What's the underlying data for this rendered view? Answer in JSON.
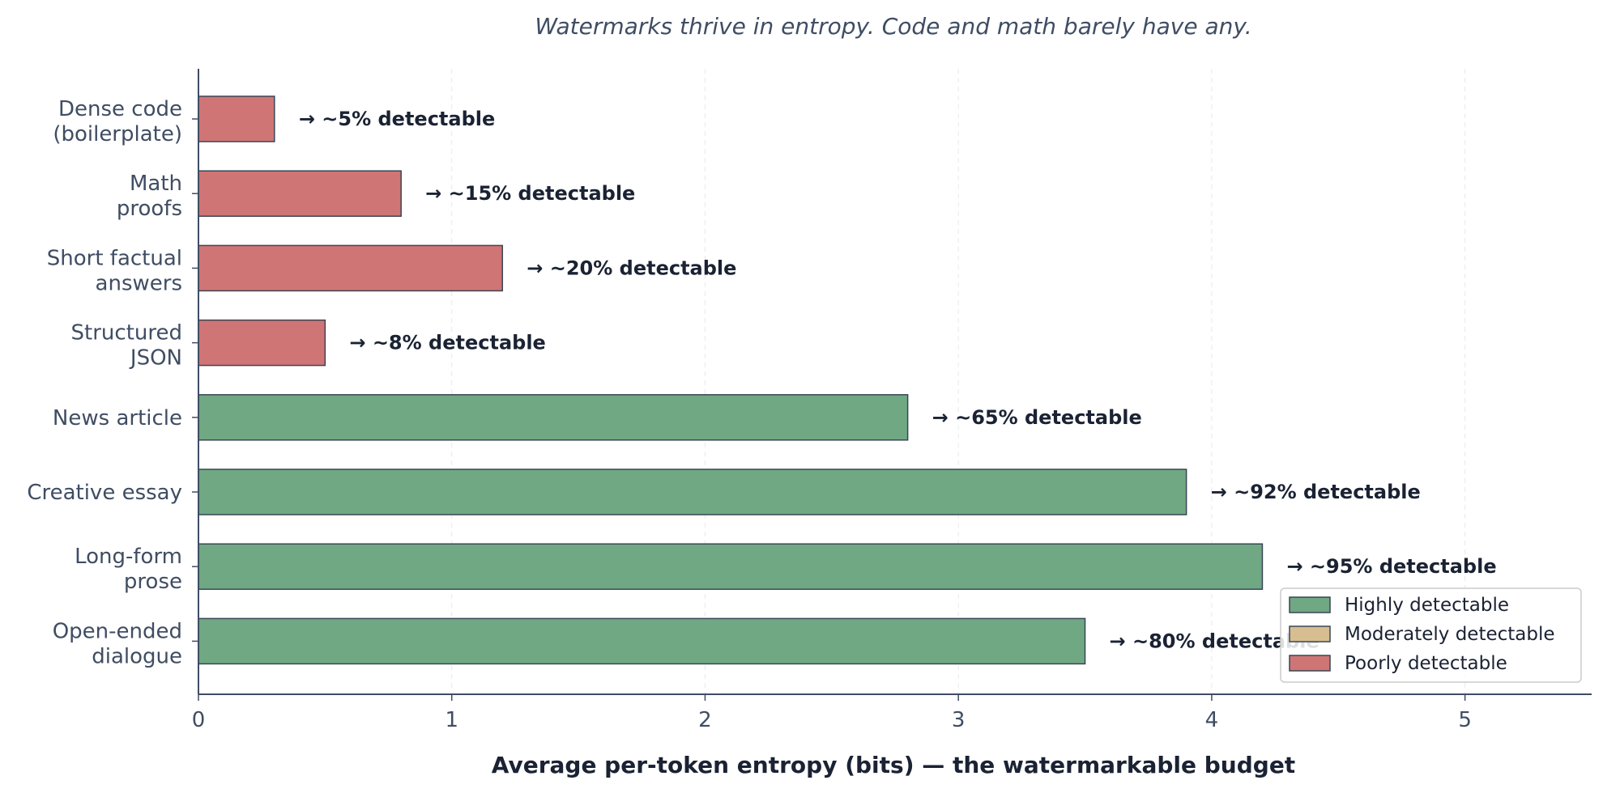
{
  "chart_data": {
    "type": "bar",
    "orientation": "horizontal",
    "title": "Watermarks thrive in entropy. Code and math barely have any.",
    "xlabel": "Average per-token entropy (bits) — the watermarkable budget",
    "ylabel": "",
    "xlim": [
      0,
      5.5
    ],
    "xticks": [
      "0",
      "1",
      "2",
      "3",
      "4",
      "5"
    ],
    "grid": "vertical dashed",
    "legend_position": "bottom-right",
    "categories": [
      [
        "Dense code",
        "(boilerplate)"
      ],
      [
        "Math",
        "proofs"
      ],
      [
        "Short factual",
        "answers"
      ],
      [
        "Structured",
        "JSON"
      ],
      [
        "News article"
      ],
      [
        "Creative essay"
      ],
      [
        "Long-form",
        "prose"
      ],
      [
        "Open-ended",
        "dialogue"
      ]
    ],
    "values": [
      0.3,
      0.8,
      1.2,
      0.5,
      2.8,
      3.9,
      4.2,
      3.5
    ],
    "bar_classes": [
      "poor",
      "poor",
      "poor",
      "poor",
      "high",
      "high",
      "high",
      "high"
    ],
    "data_labels": [
      "→ ~5% detectable",
      "→ ~15% detectable",
      "→ ~20% detectable",
      "→ ~8% detectable",
      "→ ~65% detectable",
      "→ ~92% detectable",
      "→ ~95% detectable",
      "→ ~80% detectable"
    ],
    "legend": [
      {
        "key": "high",
        "label": "Highly detectable",
        "color": "#6fa883"
      },
      {
        "key": "moderate",
        "label": "Moderately detectable",
        "color": "#d7be91"
      },
      {
        "key": "poor",
        "label": "Poorly detectable",
        "color": "#d07575"
      }
    ]
  }
}
